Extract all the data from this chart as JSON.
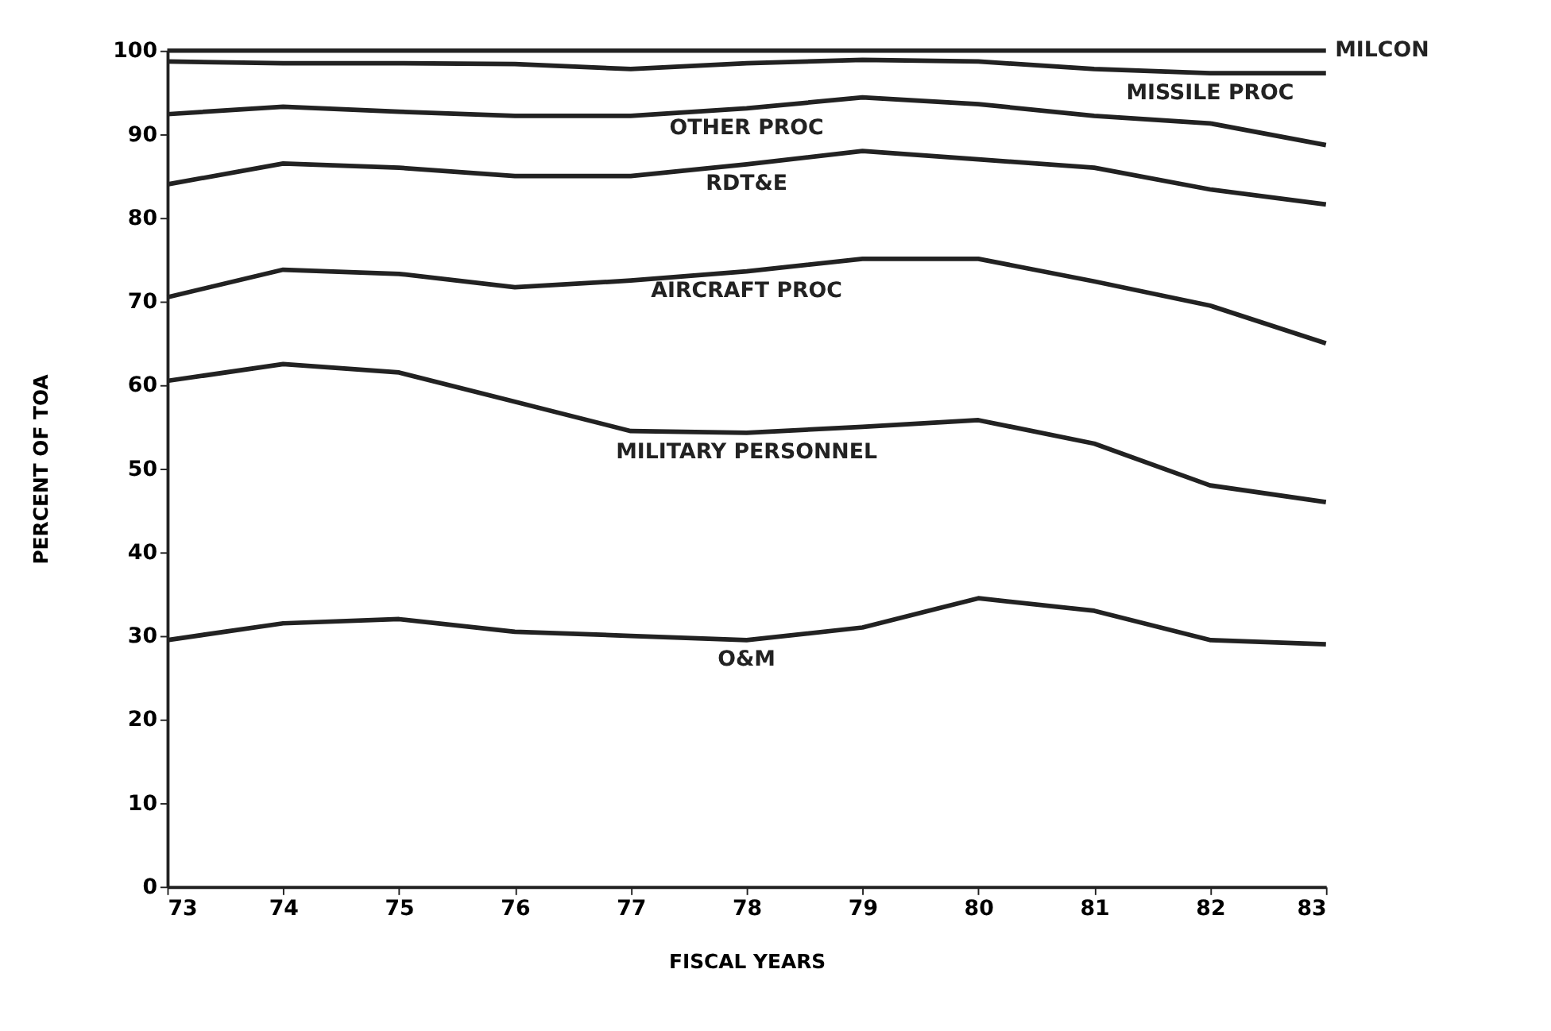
{
  "chart_data": {
    "type": "line",
    "xlabel": "FISCAL YEARS",
    "ylabel": "PERCENT OF TOA",
    "x": [
      73,
      74,
      75,
      76,
      77,
      78,
      79,
      80,
      81,
      82,
      83
    ],
    "xlim": [
      73,
      83
    ],
    "xticks": [
      73,
      74,
      75,
      76,
      77,
      78,
      79,
      80,
      81,
      82,
      83
    ],
    "ylim": [
      0,
      100
    ],
    "yticks": [
      0,
      10,
      20,
      30,
      40,
      50,
      60,
      70,
      80,
      90,
      100
    ],
    "marker": "none",
    "line_style": "solid",
    "series": [
      {
        "name": "O&M",
        "color": "#222222",
        "values": [
          29.5,
          31.5,
          32,
          30.5,
          30,
          29.5,
          31,
          34.5,
          33,
          29.5,
          29
        ]
      },
      {
        "name": "MILITARY PERSONNEL",
        "color": "#222222",
        "values": [
          60.5,
          62.5,
          61.5,
          58,
          54.5,
          54.3,
          55,
          55.8,
          53,
          48,
          46
        ]
      },
      {
        "name": "AIRCRAFT PROC",
        "color": "#222222",
        "values": [
          70.5,
          73.8,
          73.3,
          71.7,
          72.5,
          73.6,
          75.1,
          75.1,
          72.4,
          69.5,
          65
        ]
      },
      {
        "name": "RDT&E",
        "color": "#222222",
        "values": [
          84,
          86.5,
          86,
          85,
          85,
          86.4,
          88,
          87,
          86,
          83.4,
          81.6
        ]
      },
      {
        "name": "OTHER PROC",
        "color": "#222222",
        "values": [
          92.4,
          93.3,
          92.7,
          92.2,
          92.2,
          93.1,
          94.4,
          93.6,
          92.2,
          91.3,
          88.7
        ]
      },
      {
        "name": "MISSILE PROC",
        "color": "#222222",
        "values": [
          98.7,
          98.5,
          98.5,
          98.4,
          97.8,
          98.5,
          98.9,
          98.7,
          97.8,
          97.3,
          97.3
        ]
      },
      {
        "name": "MILCON",
        "color": "#222222",
        "values": [
          100,
          100,
          100,
          100,
          100,
          100,
          100,
          100,
          100,
          100,
          100
        ]
      }
    ]
  }
}
